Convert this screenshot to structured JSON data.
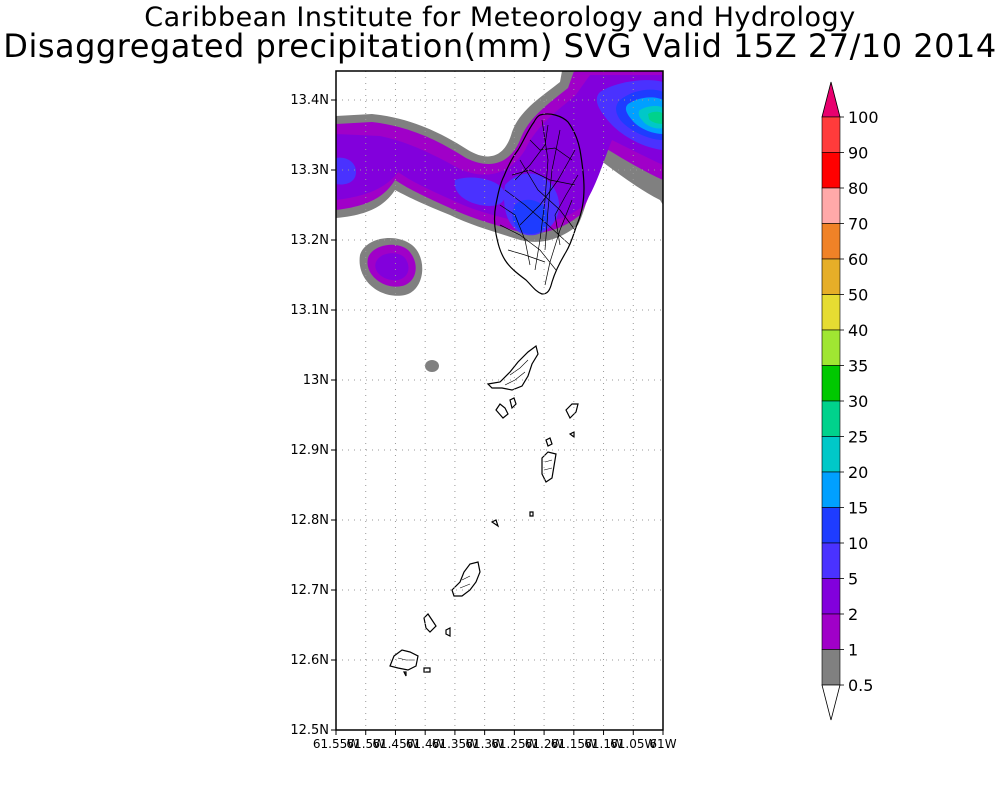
{
  "titles": {
    "line1": "Caribbean Institute for Meteorology and Hydrology",
    "line2": "Disaggregated precipitation(mm) SVG Valid 15Z 27/10 2014"
  },
  "map": {
    "lat_labels": [
      "13.4N",
      "13.3N",
      "13.2N",
      "13.1N",
      "13N",
      "12.9N",
      "12.8N",
      "12.7N",
      "12.6N",
      "12.5N"
    ],
    "lon_labels": [
      "61.55W",
      "61.5W",
      "61.45W",
      "61.4W",
      "61.35W",
      "61.3W",
      "61.25W",
      "61.2W",
      "61.15W",
      "61.1W",
      "61.05W",
      "61W"
    ]
  },
  "colorbar": {
    "labels": [
      "100",
      "90",
      "80",
      "70",
      "60",
      "50",
      "40",
      "35",
      "30",
      "25",
      "20",
      "15",
      "10",
      "5",
      "2",
      "1",
      "0.5"
    ],
    "colors": {
      "gt100": "#e8006e",
      "90-100": "#ff3b3b",
      "80-90": "#ff0000",
      "70-80": "#ffa9a9",
      "60-70": "#f08227",
      "50-60": "#e6ae28",
      "40-50": "#e6dc32",
      "35-40": "#a0e632",
      "30-35": "#00c800",
      "25-30": "#00d28c",
      "20-25": "#00c8c8",
      "15-20": "#00a0ff",
      "10-15": "#1e3cff",
      "5-10": "#4a32ff",
      "2-5": "#8200dc",
      "1-2": "#a000c8",
      "0.5-1": "#808080",
      "lt0.5": "#ffffff"
    }
  }
}
